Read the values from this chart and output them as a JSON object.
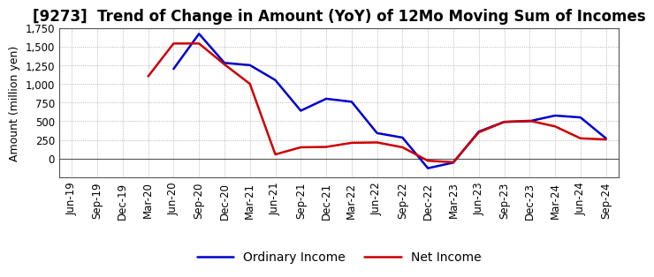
{
  "title": "[9273]  Trend of Change in Amount (YoY) of 12Mo Moving Sum of Incomes",
  "ylabel": "Amount (million yen)",
  "x_labels": [
    "Jun-19",
    "Sep-19",
    "Dec-19",
    "Mar-20",
    "Jun-20",
    "Sep-20",
    "Dec-20",
    "Mar-21",
    "Jun-21",
    "Sep-21",
    "Dec-21",
    "Mar-22",
    "Jun-22",
    "Sep-22",
    "Dec-22",
    "Mar-23",
    "Jun-23",
    "Sep-23",
    "Dec-23",
    "Mar-24",
    "Jun-24",
    "Sep-24"
  ],
  "ordinary_income": [
    null,
    null,
    null,
    null,
    1200,
    1670,
    1280,
    1250,
    1050,
    640,
    800,
    760,
    340,
    280,
    -130,
    -55,
    360,
    490,
    500,
    575,
    550,
    270
  ],
  "net_income": [
    null,
    null,
    null,
    1100,
    1540,
    1540,
    1260,
    1000,
    55,
    150,
    155,
    210,
    215,
    150,
    -30,
    -50,
    350,
    490,
    505,
    430,
    270,
    255
  ],
  "ordinary_color": "#0000cc",
  "net_color": "#cc0000",
  "ylim": [
    -250,
    1750
  ],
  "yticks": [
    0,
    250,
    500,
    750,
    1000,
    1250,
    1500,
    1750
  ],
  "ytick_labels": [
    "0",
    "250",
    "500",
    "750",
    "1,000",
    "1,250",
    "1,500",
    "1,750"
  ],
  "background_color": "#ffffff",
  "grid_color": "#999999",
  "title_fontsize": 12,
  "axis_label_fontsize": 9,
  "tick_fontsize": 8.5,
  "legend_fontsize": 10,
  "line_width": 1.8
}
